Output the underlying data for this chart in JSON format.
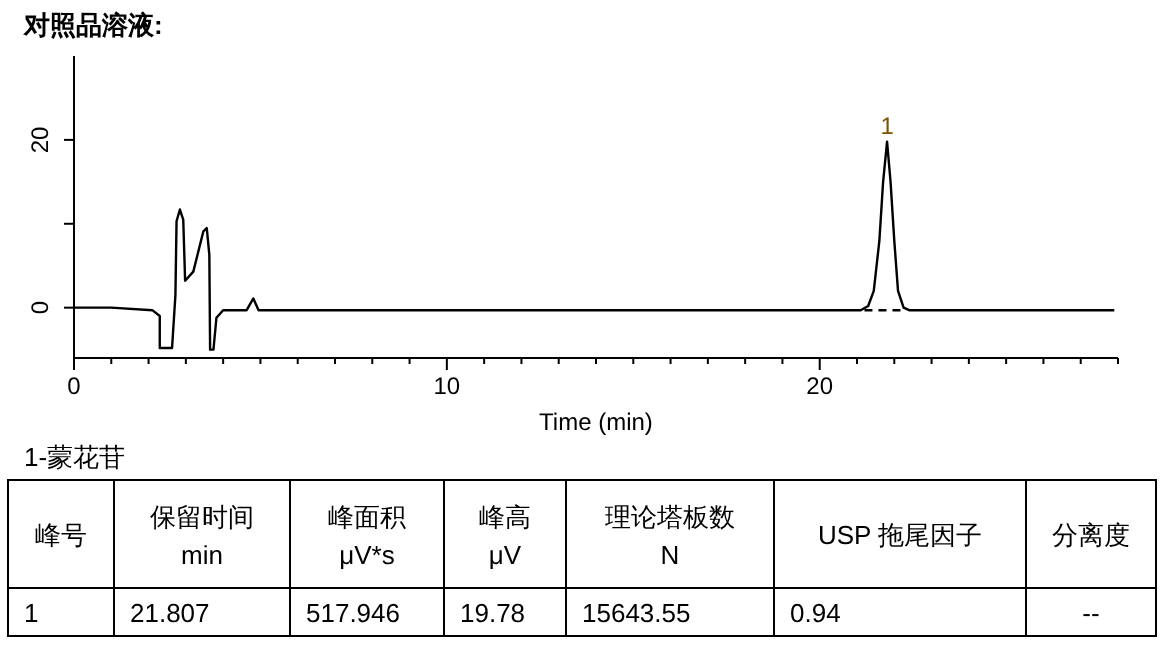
{
  "chart_data": [
    {
      "type": "line",
      "title": "对照品溶液:",
      "xlabel": "Time (min)",
      "xlim": [
        0,
        28
      ],
      "ylim": [
        -6,
        30
      ],
      "xticks": [
        0,
        {
          "value": 1,
          "label": null
        },
        {
          "value": 2,
          "label": null
        },
        {
          "value": 3,
          "label": null
        },
        {
          "value": 4,
          "label": null
        },
        {
          "value": 5,
          "label": null
        },
        {
          "value": 6,
          "label": null
        },
        {
          "value": 7,
          "label": null
        },
        {
          "value": 8,
          "label": null
        },
        {
          "value": 9,
          "label": null
        },
        10,
        {
          "value": 11,
          "label": null
        },
        {
          "value": 12,
          "label": null
        },
        {
          "value": 13,
          "label": null
        },
        {
          "value": 14,
          "label": null
        },
        {
          "value": 15,
          "label": null
        },
        {
          "value": 16,
          "label": null
        },
        {
          "value": 17,
          "label": null
        },
        {
          "value": 18,
          "label": null
        },
        {
          "value": 19,
          "label": null
        },
        20,
        {
          "value": 21,
          "label": null
        },
        {
          "value": 22,
          "label": null
        },
        {
          "value": 23,
          "label": null
        },
        {
          "value": 24,
          "label": null
        },
        {
          "value": 25,
          "label": null
        },
        {
          "value": 26,
          "label": null
        },
        {
          "value": 27,
          "label": null
        },
        {
          "value": 28,
          "label": null
        }
      ],
      "yticks": [
        0,
        {
          "value": 10,
          "label": null
        },
        20
      ],
      "series": [
        {
          "color": "#000000",
          "line_style": "solid",
          "x": [
            0,
            1,
            2.1,
            2.3,
            2.3,
            2.63,
            2.72,
            2.75,
            2.84,
            2.93,
            2.98,
            3.2,
            3.47,
            3.56,
            3.63,
            3.65,
            3.74,
            3.82,
            4.0,
            4.63,
            4.81,
            4.95,
            10,
            21.1,
            21.3,
            21.45,
            21.6,
            21.7,
            21.807,
            21.9,
            22.0,
            22.1,
            22.25,
            22.4,
            27.9
          ],
          "values": [
            0,
            0,
            -0.3,
            -1,
            -4.8,
            -4.8,
            1.5,
            10.3,
            11.7,
            10.5,
            3.2,
            4.3,
            9.1,
            9.5,
            6.3,
            -5,
            -5,
            -1.2,
            -0.3,
            -0.3,
            1.1,
            -0.3,
            -0.3,
            -0.3,
            0.2,
            2,
            8,
            15,
            19.78,
            15,
            8,
            2,
            0,
            -0.3,
            -0.3
          ]
        },
        {
          "color": "#000000",
          "line_style": "dashed",
          "x": [
            21.2,
            22.3
          ],
          "values": [
            -0.3,
            -0.3
          ]
        }
      ],
      "annotations": [
        {
          "text": "1",
          "x": 21.807,
          "y": 19.78
        }
      ]
    },
    {
      "type": "other",
      "title": "1-蒙花苷",
      "annotations": [
        "峰号",
        "保留时间\nmin",
        "峰面积\nμV*s",
        "峰高\nμV",
        "理论塔板数\nN",
        "USP 拖尾因子",
        "分离度",
        "1",
        "21.807",
        "517.946",
        "19.78",
        "15643.55",
        "0.94",
        "--"
      ]
    }
  ]
}
